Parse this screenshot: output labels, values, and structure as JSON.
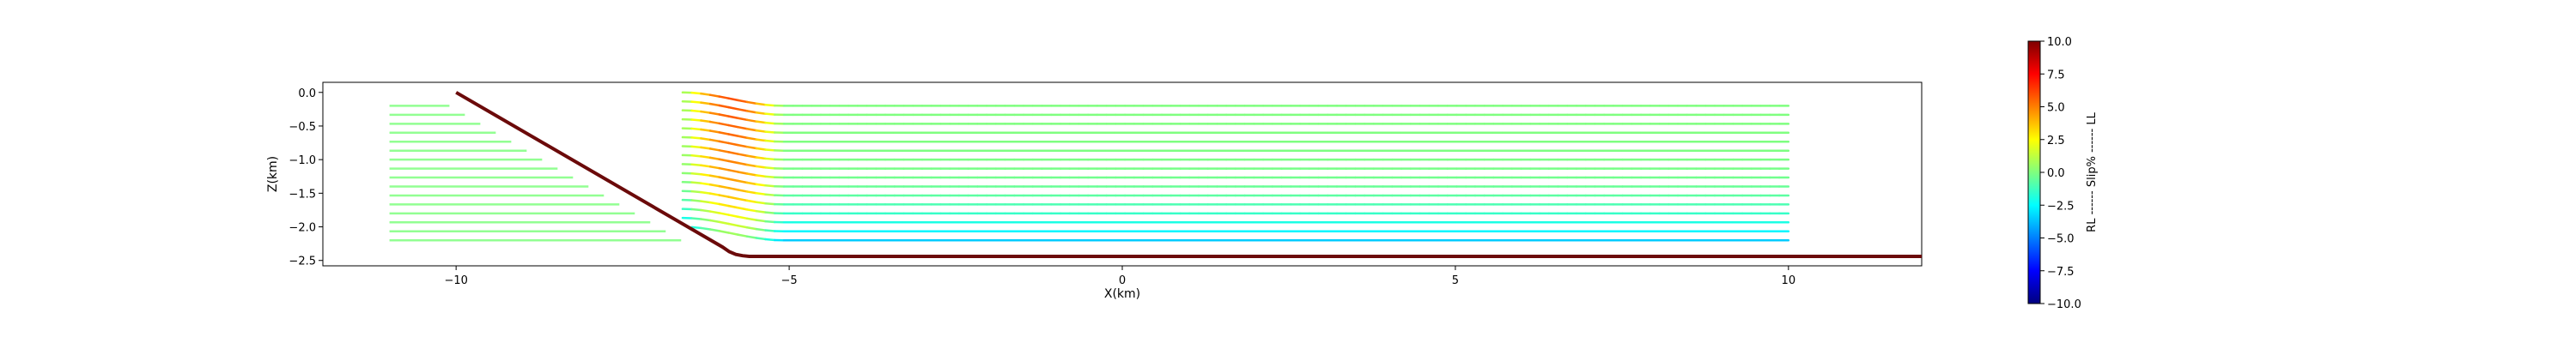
{
  "chart_data": {
    "type": "line",
    "xlabel": "X(km)",
    "ylabel": "Z(km)",
    "xlim": [
      -12,
      12
    ],
    "ylim": [
      -2.58,
      0.15
    ],
    "xticks": [
      -10,
      -5,
      0,
      5,
      10
    ],
    "xtick_labels": [
      "−10",
      "−5",
      "0",
      "5",
      "10"
    ],
    "yticks": [
      0.0,
      -0.5,
      -1.0,
      -1.5,
      -2.0,
      -2.5
    ],
    "ytick_labels": [
      "0.0",
      "−0.5",
      "−1.0",
      "−1.5",
      "−2.0",
      "−2.5"
    ],
    "grid": false,
    "fault": {
      "color": "#6b0a0a",
      "x": [
        -10.0,
        -6.0,
        -5.9,
        -5.8,
        -5.7,
        -5.6,
        12.0
      ],
      "z": [
        0.0,
        -2.3,
        -2.37,
        -2.41,
        -2.43,
        -2.44,
        -2.44
      ]
    },
    "strata": {
      "x_start": -11.0,
      "x_end": 10.0,
      "z_top": -0.2,
      "z_bottom": -2.2,
      "count": 16,
      "fold_x_left": -6.6,
      "fold_x_right": -5.1,
      "fold_uplift": 0.2,
      "top_slip_percent": 0.0,
      "bottom_slip_percent": -3.5,
      "fold_slip_percent": 6.0
    },
    "colorbar": {
      "label": "RL ------ Slip% ------ LL",
      "min": -10.0,
      "max": 10.0,
      "ticks": [
        10.0,
        7.5,
        5.0,
        2.5,
        0.0,
        -2.5,
        -5.0,
        -7.5,
        -10.0
      ],
      "tick_labels": [
        "10.0",
        "7.5",
        "5.0",
        "2.5",
        "0.0",
        "−2.5",
        "−5.0",
        "−7.5",
        "−10.0"
      ],
      "colormap": "jet",
      "stops": [
        "#00007f",
        "#0000ff",
        "#007fff",
        "#00ffff",
        "#7fff7f",
        "#ffff00",
        "#ff7f00",
        "#ff0000",
        "#7f0000"
      ]
    }
  }
}
